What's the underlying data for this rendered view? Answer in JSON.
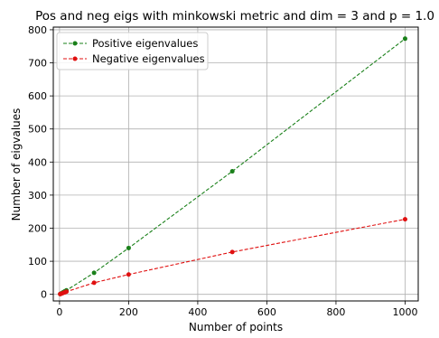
{
  "chart_data": {
    "type": "line",
    "title": "Pos and neg eigs with minkowski metric and dim = 3 and p = 1.0",
    "xlabel": "Number of points",
    "ylabel": "Number of eigvalues",
    "xlim": [
      -18,
      1038
    ],
    "ylim": [
      -20,
      808
    ],
    "xticks": [
      0,
      200,
      400,
      600,
      800,
      1000
    ],
    "yticks": [
      0,
      100,
      200,
      300,
      400,
      500,
      600,
      700,
      800
    ],
    "grid": true,
    "legend_position": "top-left",
    "x": [
      2,
      5,
      10,
      15,
      20,
      100,
      200,
      500,
      1000
    ],
    "series": [
      {
        "name": "Positive eigenvalues",
        "color": "#1a801a",
        "marker": "circle",
        "linestyle": "dashed",
        "values": [
          1,
          3,
          6,
          9,
          12,
          65,
          140,
          372,
          773
        ]
      },
      {
        "name": "Negative eigenvalues",
        "color": "#e01010",
        "marker": "circle",
        "linestyle": "dashed",
        "values": [
          1,
          2,
          4,
          6,
          8,
          35,
          60,
          128,
          227
        ]
      }
    ]
  }
}
